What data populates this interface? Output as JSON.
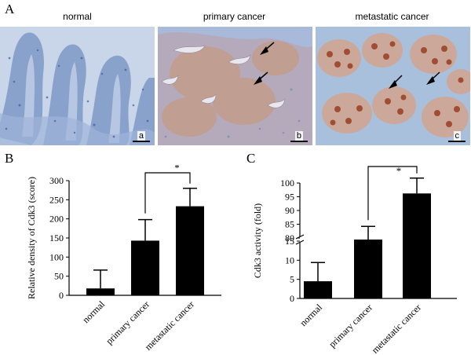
{
  "panel_letters": {
    "a": "A",
    "b": "B",
    "c": "C"
  },
  "micrographs": [
    {
      "title": "normal",
      "sublabel": "a",
      "stain": "hematoxylin-blue",
      "arrow_count": 0
    },
    {
      "title": "primary cancer",
      "sublabel": "b",
      "stain": "blue-with-brown",
      "arrow_count": 2
    },
    {
      "title": "metastatic cancer",
      "sublabel": "c",
      "stain": "brown-nuclei",
      "arrow_count": 2
    }
  ],
  "colors": {
    "bar": "#000000",
    "tissue_blue": "#8ea7cf",
    "stain_brown": "#b0684a"
  },
  "chart_data": [
    {
      "type": "bar",
      "categories": [
        "normal",
        "primary cancer",
        "metastatic cancer"
      ],
      "values": [
        18,
        143,
        233
      ],
      "errors": [
        48,
        55,
        47
      ],
      "ylabel": "Relative density of Cdk3 (score)",
      "ylim": [
        0,
        300
      ],
      "yticks": [
        "0",
        "50",
        "100",
        "150",
        "200",
        "250",
        "300"
      ],
      "significance": {
        "from": 1,
        "to": 2,
        "label": "*"
      }
    },
    {
      "type": "bar",
      "categories": [
        "normal",
        "primary cancer",
        "metastatic cancer"
      ],
      "values": [
        4.5,
        79.5,
        96.2
      ],
      "errors": [
        4.9,
        4.7,
        5.6
      ],
      "ylabel": "Cdk3 activity  (fold)",
      "axis_break": {
        "lower_range": [
          0,
          15
        ],
        "upper_range": [
          80,
          100
        ]
      },
      "yticks_lower": [
        "0",
        "5",
        "10",
        "15"
      ],
      "yticks_upper": [
        "80",
        "85",
        "90",
        "95",
        "100"
      ],
      "significance": {
        "from": 1,
        "to": 2,
        "label": "*"
      }
    }
  ]
}
